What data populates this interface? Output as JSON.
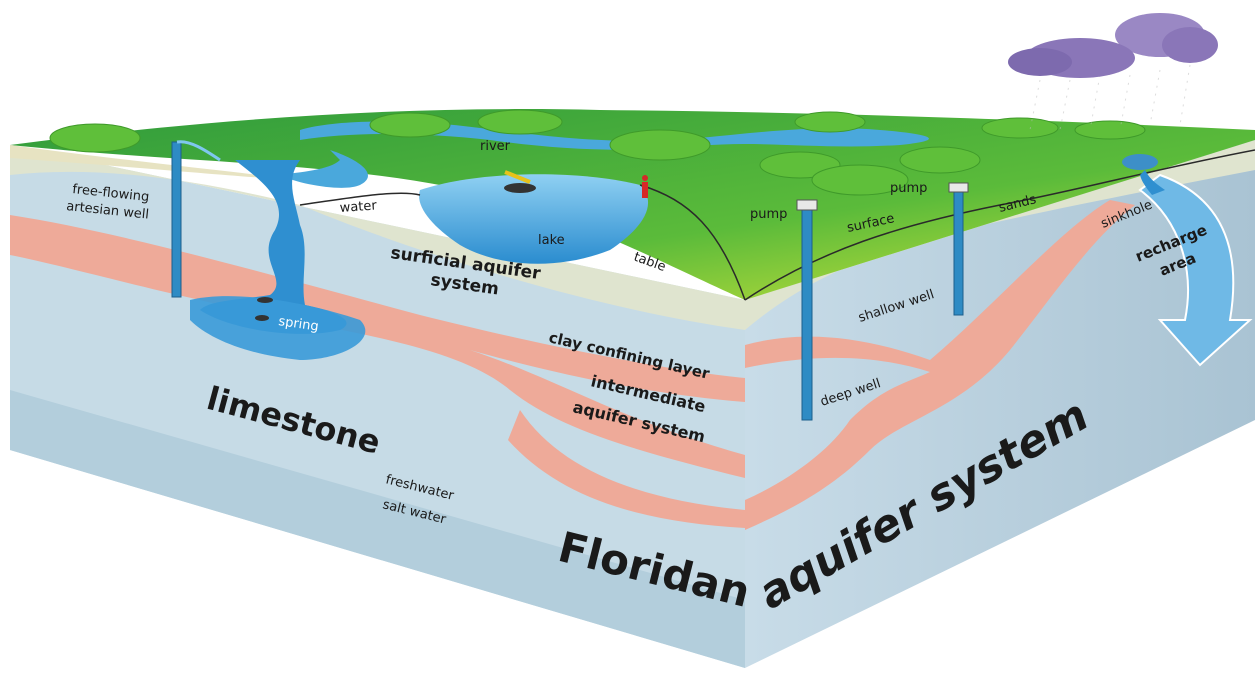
{
  "labels": {
    "free_flowing_line1": "free-flowing",
    "free_flowing_line2": "artesian well",
    "river": "river",
    "water": "water",
    "lake": "lake",
    "table": "table",
    "surface": "surface",
    "sands": "sands",
    "pump_left": "pump",
    "pump_right": "pump",
    "sinkhole": "sinkhole",
    "recharge_line1": "recharge",
    "recharge_line2": "area",
    "surficial_line1": "surficial aquifer",
    "surficial_line2": "system",
    "spring": "spring",
    "shallow_well": "shallow well",
    "clay": "clay confining layer",
    "intermediate_line1": "intermediate",
    "intermediate_line2": "aquifer system",
    "deep_well": "deep well",
    "limestone": "limestone",
    "freshwater": "freshwater",
    "salt_water": "salt water",
    "floridan": "Floridan",
    "aquifer_system": "aquifer system"
  },
  "colors": {
    "grass": "#3fae3a",
    "grass_light": "#c6e23a",
    "water": "#4aa8dc",
    "sand": "#e7e3c2",
    "clay": "#eea898",
    "limestone": "#c5dae6",
    "limestone_dark": "#adc7d6",
    "well": "#2e8bc4",
    "cloud": "#8a76b8"
  }
}
